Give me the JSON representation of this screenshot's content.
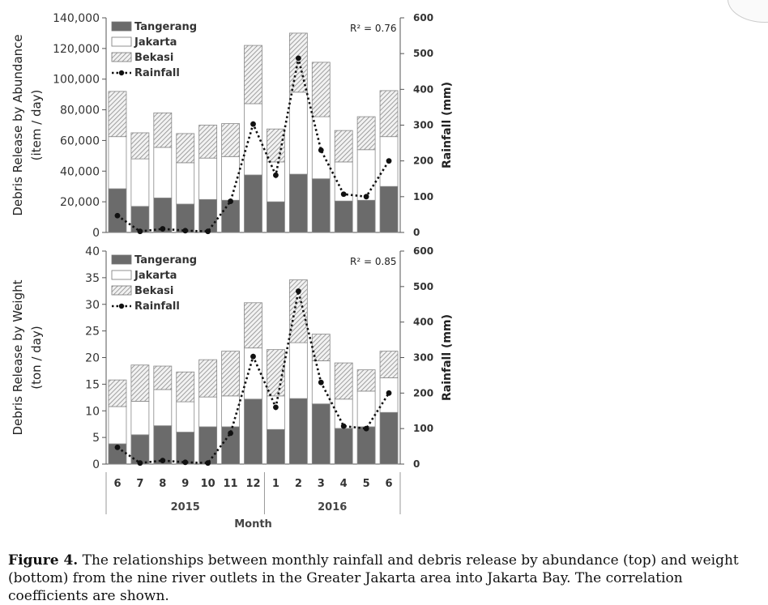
{
  "caption": {
    "lead": "Figure 4.",
    "text": " The relationships between monthly rainfall and debris release by abundance (top) and weight (bottom) from the nine river outlets in the Greater Jakarta area into Jakarta Bay. The correlation coefficients are shown."
  },
  "colors": {
    "tangerang": "#6b6b6b",
    "jakarta": "#ffffff",
    "bekasi_hatch": "#9a9a9a",
    "rainfall": "#111111"
  },
  "legend_labels": [
    "Tangerang",
    "Jakarta",
    "Bekasi",
    "Rainfall"
  ],
  "chart_data": [
    {
      "type": "bar",
      "stacked": true,
      "categories": [
        "6",
        "7",
        "8",
        "9",
        "10",
        "11",
        "12",
        "1",
        "2",
        "3",
        "4",
        "5",
        "6"
      ],
      "years": [
        {
          "label": "2015",
          "from": "6",
          "to": "12"
        },
        {
          "label": "2016",
          "from": "1",
          "to": "6"
        }
      ],
      "xlabel": "",
      "ylabel": "Debris Release by Abundance",
      "ylabel2": "(item / day)",
      "ylabel_right": "Rainfall (mm)",
      "ylim": [
        0,
        140000
      ],
      "yticks": [
        "0",
        "20,000",
        "40,000",
        "60,000",
        "80,000",
        "100,000",
        "120,000",
        "140,000"
      ],
      "y2lim": [
        0,
        600
      ],
      "y2ticks": [
        "0",
        "100",
        "200",
        "300",
        "400",
        "500",
        "600"
      ],
      "annotation": "R² = 0.76",
      "legend": "top-left",
      "series": [
        {
          "name": "Tangerang",
          "values": [
            28500,
            17000,
            22500,
            18500,
            21500,
            21000,
            37500,
            20000,
            38000,
            35000,
            20500,
            21000,
            30000
          ]
        },
        {
          "name": "Jakarta",
          "values": [
            34000,
            31000,
            33000,
            27000,
            27000,
            28500,
            46500,
            26000,
            53500,
            40500,
            25500,
            33000,
            32500
          ]
        },
        {
          "name": "Bekasi",
          "values": [
            29500,
            17000,
            22500,
            19000,
            21500,
            21500,
            38000,
            21500,
            38500,
            35500,
            20500,
            21500,
            30000
          ]
        }
      ],
      "rainfall": [
        47,
        3,
        10,
        5,
        3,
        87,
        303,
        160,
        487,
        230,
        107,
        100,
        200
      ]
    },
    {
      "type": "bar",
      "stacked": true,
      "categories": [
        "6",
        "7",
        "8",
        "9",
        "10",
        "11",
        "12",
        "1",
        "2",
        "3",
        "4",
        "5",
        "6"
      ],
      "years": [
        {
          "label": "2015",
          "from": "6",
          "to": "12"
        },
        {
          "label": "2016",
          "from": "1",
          "to": "6"
        }
      ],
      "xlabel": "Month",
      "ylabel": "Debris Release by Weight",
      "ylabel2": "(ton / day)",
      "ylabel_right": "Rainfall (mm)",
      "ylim": [
        0,
        40
      ],
      "yticks": [
        "0",
        "5",
        "10",
        "15",
        "20",
        "25",
        "30",
        "35",
        "40"
      ],
      "y2lim": [
        0,
        600
      ],
      "y2ticks": [
        "0",
        "100",
        "200",
        "300",
        "400",
        "500",
        "600"
      ],
      "annotation": "R² = 0.85",
      "legend": "top-left",
      "series": [
        {
          "name": "Tangerang",
          "values": [
            3.8,
            5.5,
            7.2,
            6.0,
            7.0,
            7.0,
            12.2,
            6.5,
            12.3,
            11.3,
            6.7,
            7.0,
            9.7
          ]
        },
        {
          "name": "Jakarta",
          "values": [
            7.0,
            6.3,
            6.8,
            5.7,
            5.6,
            5.8,
            9.6,
            6.3,
            10.5,
            8.1,
            5.5,
            6.7,
            6.5
          ]
        },
        {
          "name": "Bekasi",
          "values": [
            5.0,
            6.8,
            4.4,
            5.6,
            7.0,
            8.4,
            8.5,
            8.7,
            11.8,
            5.0,
            6.8,
            4.0,
            5.0
          ]
        }
      ],
      "rainfall": [
        47,
        3,
        10,
        5,
        3,
        87,
        303,
        160,
        487,
        230,
        107,
        100,
        200
      ]
    }
  ]
}
